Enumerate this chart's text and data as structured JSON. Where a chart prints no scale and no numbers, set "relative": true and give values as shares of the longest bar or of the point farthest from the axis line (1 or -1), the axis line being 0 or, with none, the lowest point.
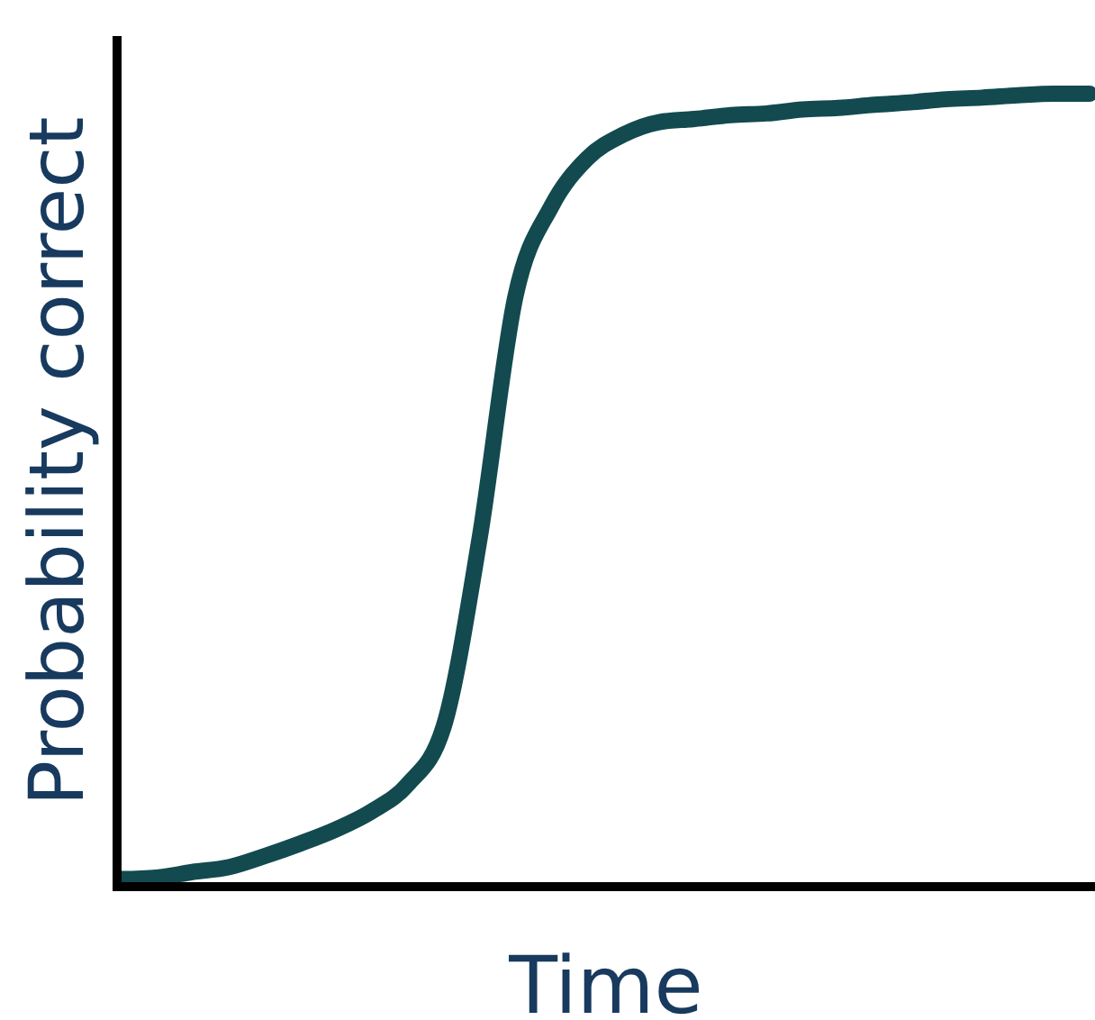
{
  "chart_data": {
    "type": "line",
    "relative": true,
    "xlabel": "Time",
    "ylabel": "Probability correct",
    "color": "#124a4f",
    "marker": "none",
    "line_style": "solid",
    "categories": [
      null,
      null,
      null,
      null,
      null,
      null,
      null,
      null,
      null,
      null,
      null,
      null,
      null,
      null,
      null,
      null,
      null,
      null,
      null,
      null,
      null,
      null,
      null,
      null,
      null,
      null,
      null,
      null
    ],
    "values": [
      0.005,
      0.007,
      0.014,
      0.02,
      0.034,
      0.05,
      0.068,
      0.091,
      0.125,
      0.198,
      0.436,
      0.743,
      0.857,
      0.918,
      0.948,
      0.964,
      0.968,
      0.973,
      0.975,
      0.98,
      0.982,
      0.986,
      0.989,
      0.993,
      0.995,
      0.998,
      1,
      1
    ]
  }
}
